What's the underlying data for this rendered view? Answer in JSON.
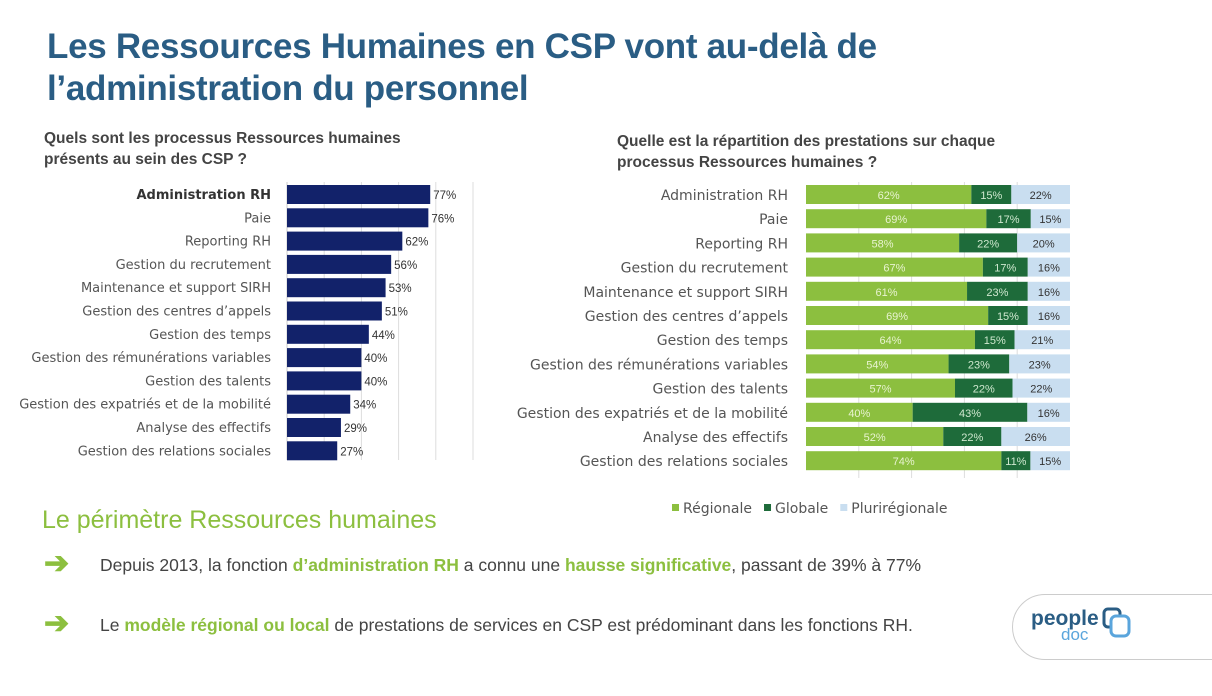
{
  "title_line1": "Les Ressources Humaines en CSP vont au-delà de",
  "title_line2": "l’administration du personnel",
  "colors": {
    "navy": "#12226a",
    "regionale": "#8cbf3f",
    "globale": "#1e6b3a",
    "pluriregionale": "#c9def0",
    "accent": "#8cbf3f",
    "title": "#2a5d84"
  },
  "chart_data": [
    {
      "type": "bar",
      "orientation": "horizontal",
      "title": "Quels sont les processus Ressources humaines présents au sein des CSP ?",
      "title_lines": [
        "Quels sont les processus Ressources humaines",
        "présents au sein des CSP ?"
      ],
      "categories": [
        "Administration RH",
        "Paie",
        "Reporting RH",
        "Gestion du recrutement",
        "Maintenance et support SIRH",
        "Gestion des centres d’appels",
        "Gestion des temps",
        "Gestion des rémunérations variables",
        "Gestion des talents",
        "Gestion des expatriés et de la mobilité",
        "Analyse des effectifs",
        "Gestion des relations sociales"
      ],
      "values": [
        77,
        76,
        62,
        56,
        53,
        51,
        44,
        40,
        40,
        34,
        29,
        27
      ],
      "labels": [
        "77%",
        "76%",
        "62%",
        "56%",
        "53%",
        "51%",
        "44%",
        "40%",
        "40%",
        "34%",
        "29%",
        "27%"
      ],
      "xlim": [
        0,
        100
      ],
      "grid": true,
      "unit": "%"
    },
    {
      "type": "bar",
      "orientation": "horizontal",
      "stacked": true,
      "title": "Quelle est la répartition des prestations sur chaque processus Ressources humaines ?",
      "title_lines": [
        "Quelle est la répartition des prestations sur chaque",
        "processus Ressources humaines ?"
      ],
      "categories": [
        "Administration RH",
        "Paie",
        "Reporting RH",
        "Gestion du recrutement",
        "Maintenance et support SIRH",
        "Gestion des centres d’appels",
        "Gestion des temps",
        "Gestion des rémunérations variables",
        "Gestion des talents",
        "Gestion des expatriés et de la mobilité",
        "Analyse des effectifs",
        "Gestion des relations sociales"
      ],
      "series": [
        {
          "name": "Régionale",
          "values": [
            62,
            69,
            58,
            67,
            61,
            69,
            64,
            54,
            57,
            40,
            52,
            74
          ]
        },
        {
          "name": "Globale",
          "values": [
            15,
            17,
            22,
            17,
            23,
            15,
            15,
            23,
            22,
            43,
            22,
            11
          ]
        },
        {
          "name": "Plurirégionale",
          "values": [
            22,
            15,
            20,
            16,
            16,
            16,
            21,
            23,
            22,
            16,
            26,
            15
          ]
        }
      ],
      "legend_position": "bottom",
      "grid": true,
      "unit": "%"
    }
  ],
  "section_title": "Le périmètre Ressources humaines",
  "points": [
    {
      "parts": [
        "Depuis 2013, la fonction ",
        "d’administration RH",
        " a connu une ",
        "hausse significative",
        ", passant de 39% à 77%"
      ]
    },
    {
      "parts": [
        "Le ",
        "modèle régional ou local",
        " de prestations de services en CSP est prédominant dans les fonctions RH."
      ]
    }
  ],
  "logo": {
    "line1": "people",
    "line2": "doc"
  }
}
